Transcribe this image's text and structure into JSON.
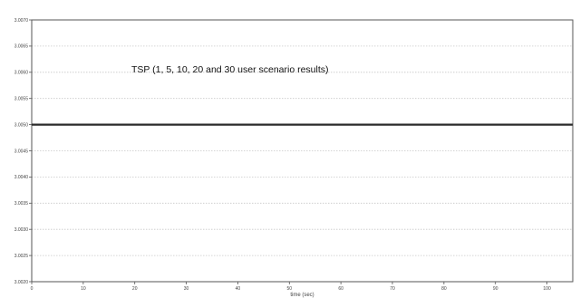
{
  "chart_data": {
    "type": "line",
    "title": "TSP (1, 5, 10, 20 and 30 user scenario results)",
    "xlabel": "time (sec)",
    "ylabel": "",
    "xlim": [
      0,
      105
    ],
    "ylim": [
      3.002,
      3.007
    ],
    "x_ticks": [
      "0",
      "10",
      "20",
      "30",
      "40",
      "50",
      "60",
      "70",
      "80",
      "90",
      "100"
    ],
    "y_ticks": [
      "3.0020",
      "3.0025",
      "3.0030",
      "3.0035",
      "3.0040",
      "3.0045",
      "3.0050",
      "3.0055",
      "3.0060",
      "3.0065",
      "3.0070"
    ],
    "grid": true,
    "series": [
      {
        "x": [
          0,
          105
        ],
        "y": [
          3.005,
          3.005
        ]
      }
    ],
    "colors": {
      "line": "#2a2a2a",
      "grid": "#c8c8c8",
      "frame": "#555555"
    }
  }
}
